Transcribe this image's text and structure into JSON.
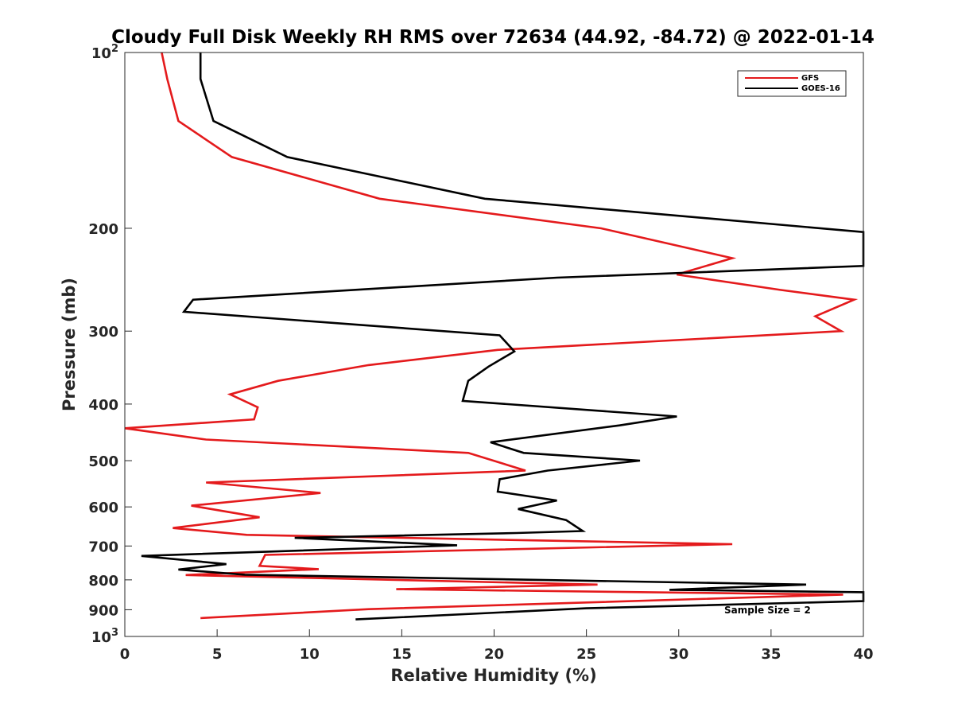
{
  "chart_data": {
    "type": "line",
    "title": "Cloudy Full Disk Weekly RH RMS over 72634 (44.92, -84.72) @ 2022-01-14",
    "xlabel": "Relative Humidity (%)",
    "ylabel": "Pressure (mb)",
    "xlim": [
      0,
      40
    ],
    "ylim": [
      100,
      1000
    ],
    "y_scale": "log",
    "y_reversed": true,
    "x_ticks": [
      0,
      5,
      10,
      15,
      20,
      25,
      30,
      35,
      40
    ],
    "x_tick_labels": [
      "0",
      "5",
      "10",
      "15",
      "20",
      "25",
      "30",
      "35",
      "40"
    ],
    "y_ticks": [
      {
        "value": 100,
        "base": "10",
        "exp": "2"
      },
      {
        "value": 200,
        "label": "200"
      },
      {
        "value": 300,
        "label": "300"
      },
      {
        "value": 400,
        "label": "400"
      },
      {
        "value": 500,
        "label": "500"
      },
      {
        "value": 600,
        "label": "600"
      },
      {
        "value": 700,
        "label": "700"
      },
      {
        "value": 800,
        "label": "800"
      },
      {
        "value": 900,
        "label": "900"
      },
      {
        "value": 1000,
        "base": "10",
        "exp": "3"
      }
    ],
    "grid": false,
    "legend_position": "top-right",
    "annotation": "Sample Size = 2",
    "series": [
      {
        "name": "GFS",
        "color": "#e41a1c",
        "x": [
          2.0,
          2.3,
          2.9,
          5.8,
          13.8,
          25.8,
          32.9,
          29.9,
          35.5,
          39.5,
          37.4,
          38.8,
          20.2,
          13.2,
          8.3,
          5.7,
          7.2,
          7.0,
          0.0,
          4.4,
          18.6,
          21.7,
          4.4,
          10.6,
          3.6,
          7.3,
          2.6,
          6.6,
          32.9,
          7.6,
          7.3,
          10.5,
          3.3,
          25.6,
          14.7,
          38.9,
          13.2,
          4.1
        ],
        "y": [
          100,
          111,
          131,
          151,
          178,
          200,
          225,
          240,
          255,
          265,
          283,
          300,
          323,
          343,
          365,
          385,
          405,
          425,
          440,
          460,
          485,
          520,
          545,
          568,
          597,
          625,
          652,
          670,
          695,
          725,
          757,
          767,
          785,
          815,
          830,
          848,
          898,
          930
        ]
      },
      {
        "name": "GOES-16",
        "color": "#000000",
        "x": [
          4.1,
          4.1,
          4.8,
          8.8,
          19.5,
          40.0,
          40.0,
          23.4,
          3.7,
          3.2,
          20.3,
          21.1,
          19.7,
          18.6,
          18.3,
          29.9,
          26.8,
          19.8,
          21.6,
          27.9,
          22.9,
          20.3,
          20.2,
          23.4,
          21.3,
          23.9,
          24.8,
          21.2,
          9.2,
          18.0,
          0.9,
          5.5,
          2.9,
          6.5,
          36.9,
          29.5,
          40.0,
          40.0,
          25.0,
          12.5
        ],
        "y": [
          100,
          111,
          131,
          151,
          178,
          203,
          232,
          243,
          265,
          278,
          305,
          325,
          345,
          365,
          395,
          420,
          435,
          465,
          485,
          500,
          520,
          538,
          565,
          585,
          605,
          632,
          660,
          665,
          678,
          698,
          728,
          752,
          768,
          784,
          815,
          832,
          840,
          870,
          895,
          935
        ]
      }
    ]
  }
}
